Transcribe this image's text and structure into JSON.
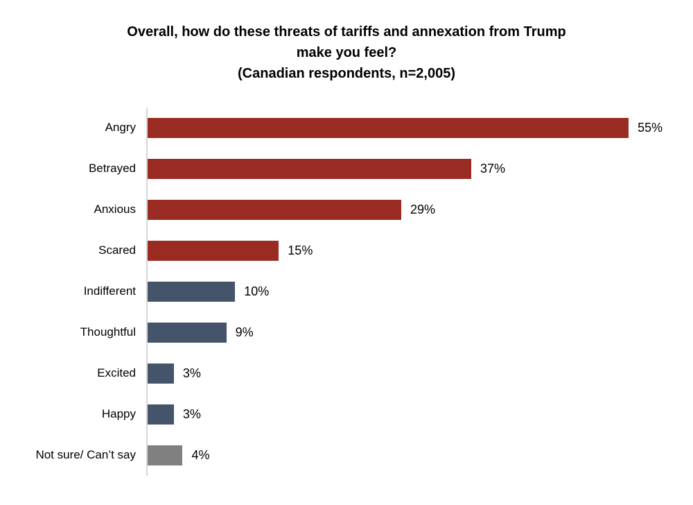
{
  "header": {
    "title_line1": "Overall, how do these threats of tariffs and annexation from Trump",
    "title_line2": "make you feel?",
    "subtitle": "(Canadian respondents, n=2,005)"
  },
  "chart_data": {
    "type": "bar",
    "orientation": "horizontal",
    "title": "Overall, how do these threats of tariffs and annexation from Trump make you feel?",
    "subtitle": "(Canadian respondents, n=2,005)",
    "categories": [
      "Angry",
      "Betrayed",
      "Anxious",
      "Scared",
      "Indifferent",
      "Thoughtful",
      "Excited",
      "Happy",
      "Not sure/ Can’t say"
    ],
    "values": [
      55,
      37,
      29,
      15,
      10,
      9,
      3,
      3,
      4
    ],
    "value_labels": [
      "55%",
      "37%",
      "29%",
      "15%",
      "10%",
      "9%",
      "3%",
      "3%",
      "4%"
    ],
    "bar_colors": [
      "#992b22",
      "#992b22",
      "#992b22",
      "#992b22",
      "#44546a",
      "#44546a",
      "#44546a",
      "#44546a",
      "#808080"
    ],
    "xlim": [
      0,
      55
    ],
    "grid": false,
    "legend": "none",
    "data_labels": "outside-end",
    "colors_legend": {
      "negative_emotions": "#992b22",
      "neutral_positive_emotions": "#44546a",
      "not_sure": "#808080"
    },
    "axis_line_color": "#d6d6d6",
    "background_color": "#ffffff"
  }
}
